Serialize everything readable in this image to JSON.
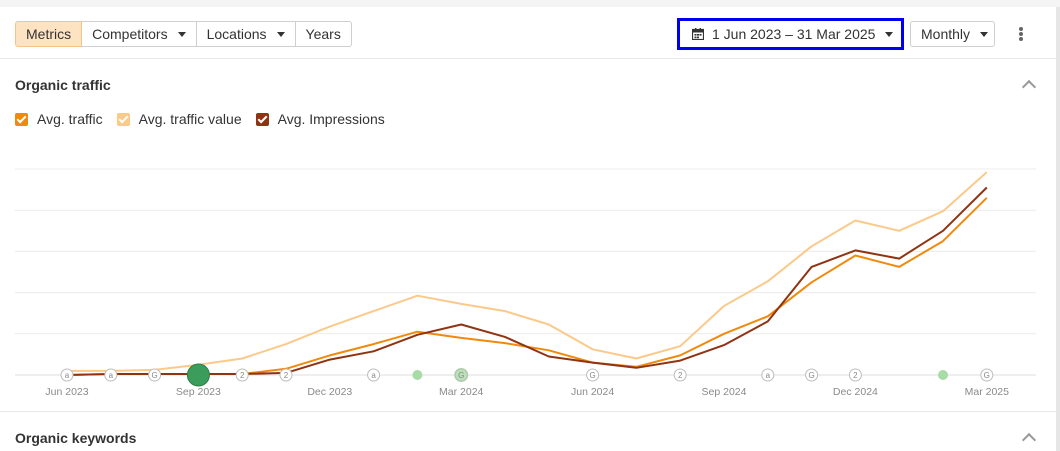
{
  "toolbar": {
    "tabs": [
      {
        "label": "Metrics",
        "active": true
      },
      {
        "label": "Competitors",
        "dropdown": true
      },
      {
        "label": "Locations",
        "dropdown": true
      },
      {
        "label": "Years"
      }
    ],
    "date_range": "1 Jun 2023 – 31 Mar 2025",
    "granularity": "Monthly"
  },
  "section1": {
    "title": "Organic traffic",
    "legend": [
      {
        "label": "Avg. traffic",
        "color": "#f08a0c",
        "checked": true
      },
      {
        "label": "Avg. traffic value",
        "color": "#fbc98a",
        "checked": true
      },
      {
        "label": "Avg. Impressions",
        "color": "#8f3313",
        "checked": true
      }
    ]
  },
  "section2": {
    "title": "Organic keywords"
  },
  "chart_data": {
    "type": "line",
    "x": [
      "Jun 2023",
      "Jul 2023",
      "Aug 2023",
      "Sep 2023",
      "Oct 2023",
      "Nov 2023",
      "Dec 2023",
      "Jan 2024",
      "Feb 2024",
      "Mar 2024",
      "Apr 2024",
      "May 2024",
      "Jun 2024",
      "Jul 2024",
      "Aug 2024",
      "Sep 2024",
      "Oct 2024",
      "Nov 2024",
      "Dec 2024",
      "Jan 2025",
      "Feb 2025",
      "Mar 2025"
    ],
    "tick_labels": [
      "Jun 2023",
      "Sep 2023",
      "Dec 2023",
      "Mar 2024",
      "Jun 2024",
      "Sep 2024",
      "Dec 2024",
      "Mar 2025"
    ],
    "ylim": [
      0,
      100
    ],
    "grid": true,
    "series": [
      {
        "name": "Avg. traffic value",
        "color": "#fbc98a",
        "values": [
          2,
          2,
          2.5,
          5,
          8,
          15,
          23.5,
          31,
          38.5,
          34.5,
          31,
          24.5,
          12.5,
          8,
          14,
          33.5,
          45.5,
          62.5,
          75,
          70,
          79.5,
          98.5
        ]
      },
      {
        "name": "Avg. traffic",
        "color": "#f08a0c",
        "values": [
          0,
          0.5,
          0.5,
          0.5,
          0.5,
          3,
          9.5,
          15,
          21,
          18,
          15.5,
          12,
          6,
          4,
          9.5,
          20,
          28.5,
          45,
          58,
          52.5,
          65,
          86
        ]
      },
      {
        "name": "Avg. Impressions",
        "color": "#8f3313",
        "values": [
          0,
          0.5,
          0.5,
          0.5,
          0.5,
          1,
          7.5,
          11.5,
          19.5,
          24.5,
          18.5,
          9,
          6,
          3.5,
          7,
          14.5,
          26,
          52.5,
          60.5,
          56.5,
          70,
          91
        ]
      }
    ],
    "annotations": [
      {
        "x": "Jun 2023",
        "type": "circle",
        "text": "a"
      },
      {
        "x": "Jul 2023",
        "type": "circle",
        "text": "a"
      },
      {
        "x": "Aug 2023",
        "type": "circle",
        "text": "G"
      },
      {
        "x": "Sep 2023",
        "type": "big-dot",
        "text": ""
      },
      {
        "x": "Oct 2023",
        "type": "circle",
        "text": "2"
      },
      {
        "x": "Nov 2023",
        "type": "circle",
        "text": "2"
      },
      {
        "x": "Jan 2024",
        "type": "circle",
        "text": "a"
      },
      {
        "x": "Feb 2024",
        "type": "dot",
        "text": ""
      },
      {
        "x": "Mar 2024",
        "type": "dot-circle",
        "text": "G"
      },
      {
        "x": "Jun 2024",
        "type": "circle",
        "text": "G"
      },
      {
        "x": "Aug 2024",
        "type": "circle",
        "text": "2"
      },
      {
        "x": "Oct 2024",
        "type": "circle",
        "text": "a"
      },
      {
        "x": "Nov 2024",
        "type": "circle",
        "text": "G"
      },
      {
        "x": "Dec 2024",
        "type": "circle",
        "text": "2"
      },
      {
        "x": "Feb 2025",
        "type": "dot",
        "text": ""
      },
      {
        "x": "Mar 2025",
        "type": "circle",
        "text": "G"
      }
    ]
  }
}
